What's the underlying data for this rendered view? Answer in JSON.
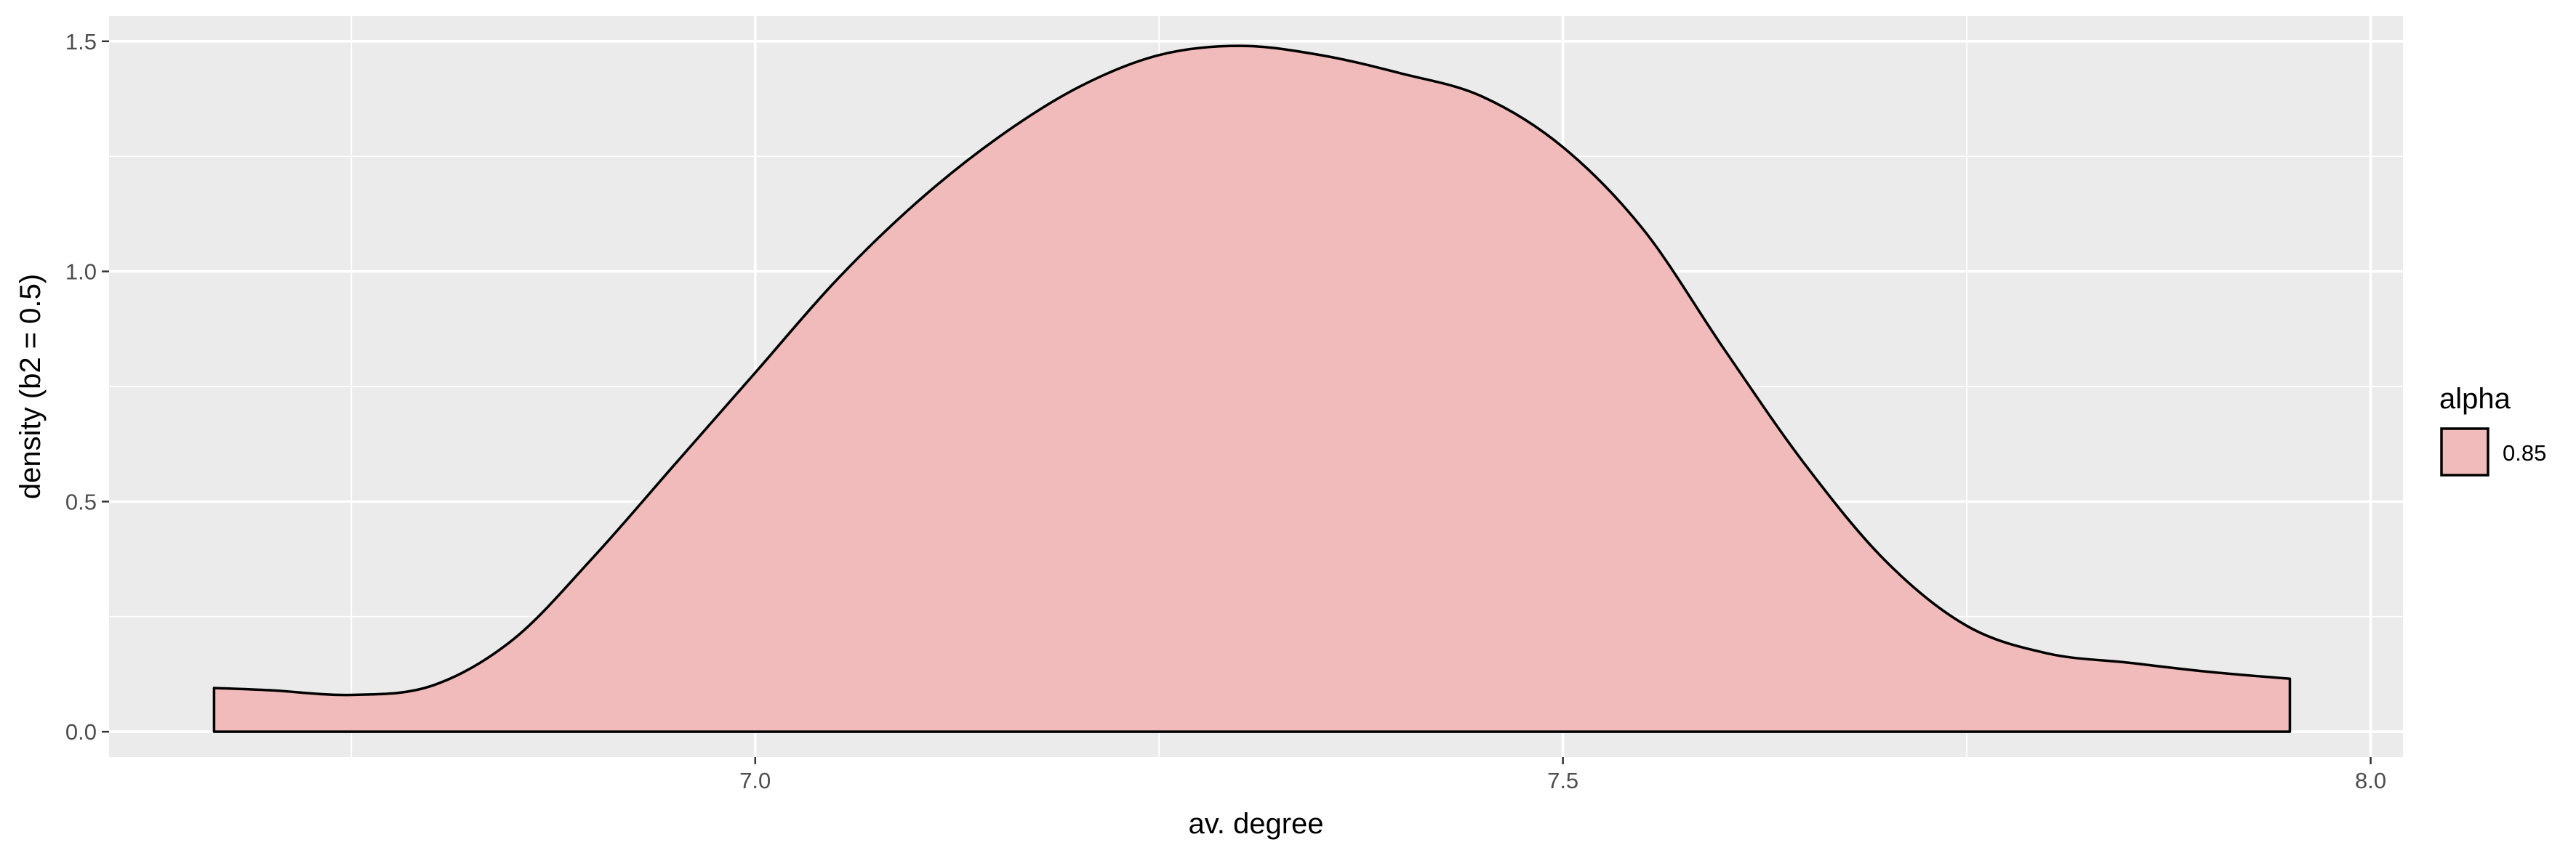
{
  "chart_data": {
    "type": "area",
    "subtype": "density",
    "title": "",
    "xlabel": "av. degree",
    "ylabel": "density (b2 = 0.5)",
    "xlim": [
      6.6,
      8.02
    ],
    "ylim": [
      -0.055,
      1.555
    ],
    "x_ticks": [
      7.0,
      7.5,
      8.0
    ],
    "x_tick_labels": [
      "7.0",
      "7.5",
      "8.0"
    ],
    "y_ticks": [
      0.0,
      0.5,
      1.0,
      1.5
    ],
    "y_tick_labels": [
      "0.0",
      "0.5",
      "1.0",
      "1.5"
    ],
    "grid": true,
    "legend_position": "right",
    "colors": {
      "panel_background": "#EBEBEB",
      "grid_line": "#FFFFFF",
      "fill": "#F0BBBA",
      "outline": "#000000"
    },
    "legend": {
      "title": "alpha",
      "entries": [
        {
          "label": "0.85",
          "fill": "#F0BBBA"
        }
      ]
    },
    "series": [
      {
        "name": "0.85",
        "x": [
          6.665,
          6.7,
          6.75,
          6.8,
          6.85,
          6.9,
          6.95,
          7.0,
          7.05,
          7.1,
          7.15,
          7.2,
          7.25,
          7.3,
          7.35,
          7.4,
          7.45,
          7.5,
          7.55,
          7.6,
          7.65,
          7.7,
          7.75,
          7.8,
          7.85,
          7.9,
          7.95
        ],
        "y": [
          0.095,
          0.09,
          0.08,
          0.1,
          0.2,
          0.38,
          0.58,
          0.78,
          0.98,
          1.15,
          1.29,
          1.4,
          1.47,
          1.49,
          1.47,
          1.43,
          1.38,
          1.27,
          1.09,
          0.83,
          0.58,
          0.37,
          0.23,
          0.17,
          0.15,
          0.13,
          0.115
        ]
      }
    ]
  }
}
